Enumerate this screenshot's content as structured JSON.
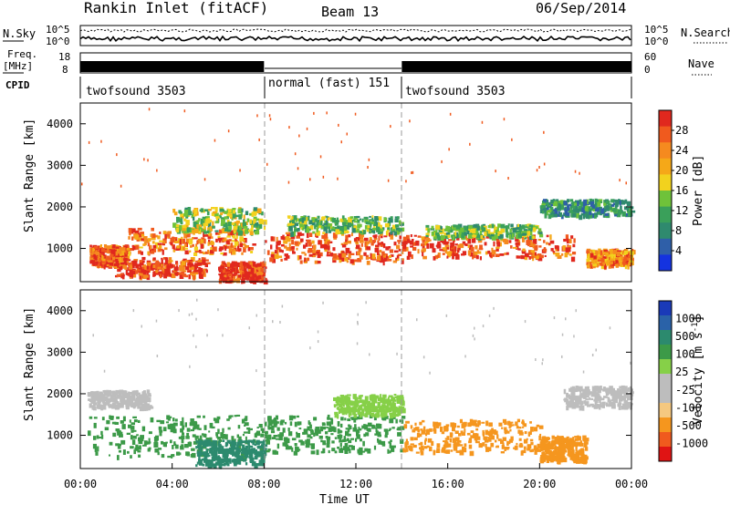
{
  "header": {
    "station": "Rankin Inlet (fitACF)",
    "beam": "Beam 13",
    "date": "06/Sep/2014"
  },
  "status_panels": {
    "nsky_label": "N.Sky",
    "nsearch_label": "N.Search",
    "freq_label_line1": "Freq.",
    "freq_label_line2": "[MHz]",
    "nave_label": "Nave",
    "cpid_label": "CPID",
    "nsky_ticks": [
      "10^5",
      "10^0"
    ],
    "nsearch_ticks": [
      "10^5",
      "10^0"
    ],
    "freq_ticks": [
      "18",
      "8"
    ],
    "nave_ticks": [
      "60",
      "0"
    ],
    "cpid_segments": [
      {
        "label": "twofsound 3503",
        "start": 0,
        "end": 8
      },
      {
        "label": "normal (fast) 151",
        "start": 8,
        "end": 14
      },
      {
        "label": "twofsound 3503",
        "start": 14,
        "end": 24
      }
    ]
  },
  "colors": {
    "power_scale": [
      "#1433e0",
      "#2f5fa8",
      "#2f8a6e",
      "#3aa05a",
      "#6fc23a",
      "#f2d21e",
      "#f5a818",
      "#f58a1f",
      "#f05a1e",
      "#e0281e"
    ],
    "velocity_scale": [
      "#e01414",
      "#f05a1e",
      "#f5961e",
      "#f5c880",
      "#bdbdbd",
      "#bdbdbd",
      "#86d048",
      "#3c9a48",
      "#2c8a6e",
      "#2a62a8",
      "#1a3ab8"
    ]
  },
  "chart_data": [
    {
      "type": "heatmap",
      "name": "power",
      "ylabel": "Slant Range [km]",
      "xlabel": "Time UT",
      "xticks": [
        "00:00",
        "04:00",
        "08:00",
        "12:00",
        "16:00",
        "20:00",
        "00:00"
      ],
      "yticks": [
        "1000",
        "2000",
        "3000",
        "4000"
      ],
      "ylim": [
        200,
        4500
      ],
      "xlim": [
        0,
        24
      ],
      "colorbar_label": "Power [dB]",
      "colorbar_ticks": [
        "4",
        "8",
        "12",
        "16",
        "20",
        "24",
        "28"
      ],
      "colorbar_range": [
        0,
        30
      ],
      "bands": [
        {
          "t0": 0.4,
          "t1": 2.0,
          "r0": 600,
          "r1": 1100,
          "value": 26
        },
        {
          "t0": 1.5,
          "t1": 5.5,
          "r0": 350,
          "r1": 800,
          "value": 28
        },
        {
          "t0": 2.0,
          "t1": 7.5,
          "r0": 900,
          "r1": 1500,
          "value": 24
        },
        {
          "t0": 4.0,
          "t1": 8.0,
          "r0": 1400,
          "r1": 2000,
          "value": 14
        },
        {
          "t0": 6.0,
          "t1": 8.0,
          "r0": 250,
          "r1": 700,
          "value": 29
        },
        {
          "t0": 8.0,
          "t1": 14.0,
          "r0": 700,
          "r1": 1400,
          "value": 27
        },
        {
          "t0": 9.0,
          "t1": 14.0,
          "r0": 1400,
          "r1": 1800,
          "value": 12
        },
        {
          "t0": 14.0,
          "t1": 21.5,
          "r0": 800,
          "r1": 1350,
          "value": 26
        },
        {
          "t0": 15.0,
          "t1": 20.0,
          "r0": 1300,
          "r1": 1600,
          "value": 12
        },
        {
          "t0": 20.0,
          "t1": 24.0,
          "r0": 1800,
          "r1": 2200,
          "value": 9
        },
        {
          "t0": 22.0,
          "t1": 24.0,
          "r0": 600,
          "r1": 1000,
          "value": 22
        }
      ]
    },
    {
      "type": "heatmap",
      "name": "velocity",
      "ylabel": "Slant Range [km]",
      "xlabel": "Time UT",
      "xticks": [
        "00:00",
        "04:00",
        "08:00",
        "12:00",
        "16:00",
        "20:00",
        "00:00"
      ],
      "yticks": [
        "1000",
        "2000",
        "3000",
        "4000"
      ],
      "ylim": [
        200,
        4500
      ],
      "xlim": [
        0,
        24
      ],
      "colorbar_label": "Velocity [m s^-1]",
      "colorbar_ticks": [
        "1000",
        "500",
        "100",
        "25",
        "-25",
        "-100",
        "-500",
        "-1000"
      ],
      "bands": [
        {
          "t0": 0.3,
          "t1": 3.0,
          "r0": 1700,
          "r1": 2100,
          "value": 0
        },
        {
          "t0": 0.3,
          "t1": 8.0,
          "r0": 500,
          "r1": 1500,
          "value": 150
        },
        {
          "t0": 5.0,
          "t1": 8.0,
          "r0": 300,
          "r1": 900,
          "value": 700
        },
        {
          "t0": 8.0,
          "t1": 14.0,
          "r0": 600,
          "r1": 1500,
          "value": 200
        },
        {
          "t0": 11.0,
          "t1": 14.0,
          "r0": 1500,
          "r1": 2000,
          "value": 60
        },
        {
          "t0": 14.0,
          "t1": 20.0,
          "r0": 600,
          "r1": 1400,
          "value": -300
        },
        {
          "t0": 20.0,
          "t1": 22.0,
          "r0": 400,
          "r1": 1000,
          "value": -200
        },
        {
          "t0": 21.0,
          "t1": 24.0,
          "r0": 1700,
          "r1": 2200,
          "value": 0
        }
      ]
    }
  ]
}
